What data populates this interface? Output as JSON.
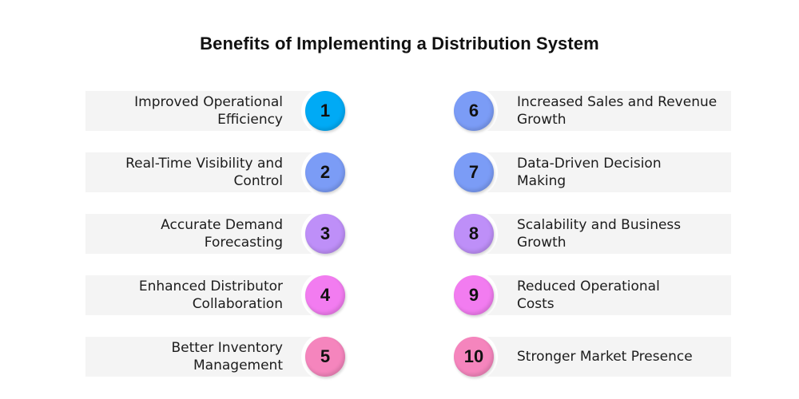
{
  "title": "Benefits of Implementing a Distribution System",
  "left_items": [
    {
      "number": "1",
      "line1": "Improved Operational",
      "line2": "Efficiency",
      "color": "#00aaf5"
    },
    {
      "number": "2",
      "line1": "Real-Time Visibility and",
      "line2": "Control",
      "color": "#7b9cf6"
    },
    {
      "number": "3",
      "line1": "Accurate Demand",
      "line2": "Forecasting",
      "color": "#be8ff8"
    },
    {
      "number": "4",
      "line1": "Enhanced Distributor",
      "line2": "Collaboration",
      "color": "#f27cf0"
    },
    {
      "number": "5",
      "line1": "Better Inventory",
      "line2": "Management",
      "color": "#f585bd"
    }
  ],
  "right_items": [
    {
      "number": "6",
      "line1": "Increased Sales and Revenue",
      "line2": "Growth",
      "color": "#7b9cf6"
    },
    {
      "number": "7",
      "line1": "Data-Driven Decision",
      "line2": "Making",
      "color": "#7b9cf6"
    },
    {
      "number": "8",
      "line1": "Scalability and Business",
      "line2": "Growth",
      "color": "#be8ff8"
    },
    {
      "number": "9",
      "line1": "Reduced Operational",
      "line2": "Costs",
      "color": "#f27cf0"
    },
    {
      "number": "10",
      "line1": "Stronger Market Presence",
      "line2": "",
      "color": "#f585bd"
    }
  ],
  "colors": {
    "bar_background": "#f4f4f4",
    "text": "#1c1c1c",
    "title": "#111111"
  }
}
